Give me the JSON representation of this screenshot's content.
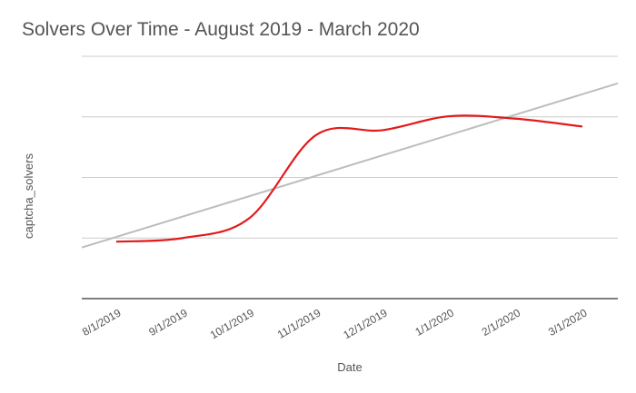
{
  "chart_data": {
    "type": "line",
    "title": "Solvers Over Time - August 2019 - March 2020",
    "x_label": "Date",
    "y_label": "captcha_solvers",
    "categories": [
      "8/1/2019",
      "9/1/2019",
      "10/1/2019",
      "11/1/2019",
      "12/1/2019",
      "1/1/2020",
      "2/1/2020",
      "3/1/2020"
    ],
    "series": [
      {
        "name": "captcha_solvers",
        "color": "#e31a1c",
        "values": [
          0.94,
          1.0,
          1.33,
          2.7,
          2.78,
          3.01,
          2.97,
          2.84
        ]
      }
    ],
    "ylim": [
      0,
      4
    ],
    "ygrid": [
      0,
      1,
      2,
      3,
      4
    ],
    "smooth": true,
    "trendline": true,
    "trendline_color": "#bdbdbd"
  }
}
